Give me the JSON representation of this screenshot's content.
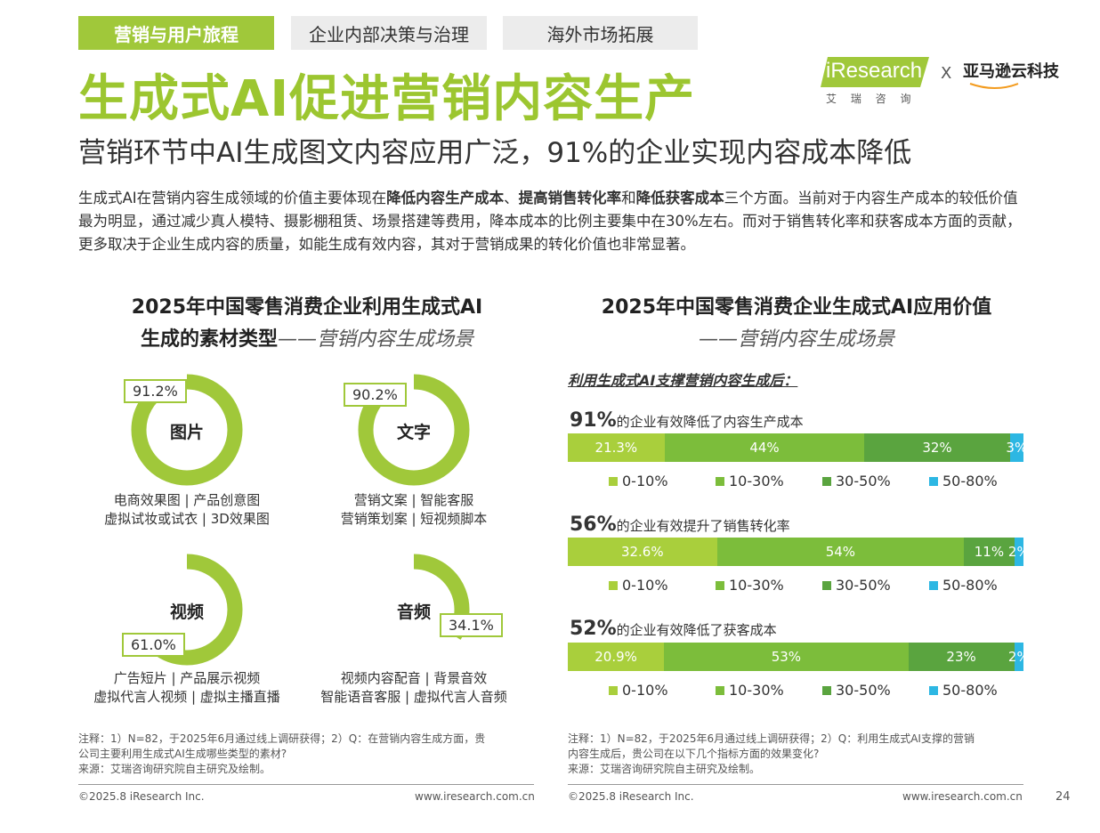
{
  "tabs": [
    {
      "label": "营销与用户旅程",
      "active": true
    },
    {
      "label": "企业内部决策与治理",
      "active": false
    },
    {
      "label": "海外市场拓展",
      "active": false
    }
  ],
  "logo": {
    "brand": "iResearch",
    "brand_cn": "艾 瑞 咨 询",
    "x": "X",
    "partner": "亚马逊云科技"
  },
  "title": "生成式AI促进营销内容生产",
  "subtitle": "营销环节中AI生成图文内容应用广泛，91%的企业实现内容成本降低",
  "intro": {
    "p1": "生成式AI在营销内容生成领域的价值主要体现在",
    "b1": "降低内容生产成本",
    "s1": "、",
    "b2": "提高销售转化率",
    "s2": "和",
    "b3": "降低获客成本",
    "p2": "三个方面。当前对于内容生产成本的较低价值最为明显，通过减少真人模特、摄影棚租赁、场景搭建等费用，降本成本的比例主要集中在30%左右。而对于销售转化率和获客成本方面的贡献，更多取决于企业生成内容的质量，如能生成有效内容，其对于营销成果的转化价值也非常显著。"
  },
  "left_chart": {
    "title_line1": "2025年中国零售消费企业利用生成式AI",
    "title_line2": "生成的素材类型",
    "title_suffix": "——营销内容生成场景",
    "note_line1": "注释：1）N=82，于2025年6月通过线上调研获得；2）Q：在营销内容生成方面，贵",
    "note_line2": "公司主要利用生成式AI生成哪些类型的素材?",
    "source": "来源：艾瑞咨询研究院自主研究及绘制。"
  },
  "right_chart": {
    "title_line1": "2025年中国零售消费企业生成式AI应用价值",
    "title_suffix": "——营销内容生成场景",
    "section_title": "利用生成式AI支撑营销内容生成后：",
    "note_line1": "注释：1）N=82，于2025年6月通过线上调研获得；2）Q：利用生成式AI支撑的营销",
    "note_line2": "内容生成后，贵公司在以下几个指标方面的效果变化?",
    "source": "来源：艾瑞咨询研究院自主研究及绘制。"
  },
  "chart_data": [
    {
      "type": "pie",
      "categories": [
        "图片",
        "文字",
        "视频",
        "音频"
      ],
      "values": [
        91.2,
        90.2,
        61.0,
        34.1
      ],
      "value_labels": [
        "91.2%",
        "90.2%",
        "61.0%",
        "34.1%"
      ],
      "captions": [
        [
          "电商效果图 | 产品创意图",
          "虚拟试妆或试衣 | 3D效果图"
        ],
        [
          "营销文案 | 智能客服",
          "营销策划案 | 短视频脚本"
        ],
        [
          "广告短片 | 产品展示视频",
          "虚拟代言人视频 | 虚拟主播直播"
        ],
        [
          "视频内容配音 | 背景音效",
          "智能语音客服 | 虚拟代言人音频"
        ]
      ],
      "colors": {
        "fill": "#a0c83a",
        "track": "#ffffff"
      }
    },
    {
      "type": "bar",
      "stacked": true,
      "orientation": "horizontal",
      "categories": [
        "0-10%",
        "10-30%",
        "30-50%",
        "50-80%"
      ],
      "colors": [
        "#a9cf3c",
        "#7cbd3b",
        "#5aa43f",
        "#2db7e3"
      ],
      "rows": [
        {
          "headline": "91%",
          "label": "的企业有效降低了内容生产成本",
          "values": [
            21.3,
            44,
            32,
            3
          ],
          "value_labels": [
            "21.3%",
            "44%",
            "32%",
            "3%"
          ]
        },
        {
          "headline": "56%",
          "label": "的企业有效提升了销售转化率",
          "values": [
            32.6,
            54,
            11,
            2
          ],
          "value_labels": [
            "32.6%",
            "54%",
            "11%",
            "2%"
          ]
        },
        {
          "headline": "52%",
          "label": "的企业有效降低了获客成本",
          "values": [
            20.9,
            53,
            23,
            2
          ],
          "value_labels": [
            "20.9%",
            "53%",
            "23%",
            "2%"
          ]
        }
      ]
    }
  ],
  "footer": {
    "copyright": "©2025.8 iResearch Inc.",
    "site": "www.iresearch.com.cn",
    "page": "24"
  }
}
